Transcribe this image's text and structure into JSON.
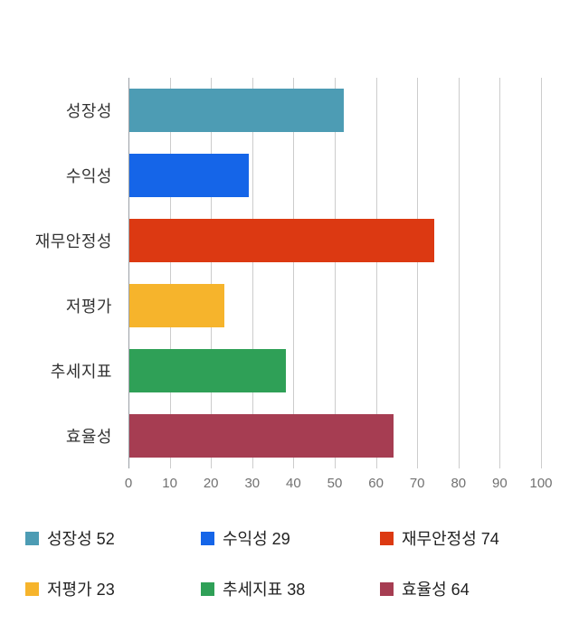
{
  "chart_data": {
    "type": "bar",
    "orientation": "horizontal",
    "title": "",
    "categories": [
      "성장성",
      "수익성",
      "재무안정성",
      "저평가",
      "추세지표",
      "효율성"
    ],
    "values": [
      52,
      29,
      74,
      23,
      38,
      64
    ],
    "colors": [
      "#4d9cb4",
      "#1565e8",
      "#dc3912",
      "#f6b42c",
      "#2fa057",
      "#a63d52"
    ],
    "xlim": [
      0,
      100
    ],
    "x_ticks": [
      0,
      10,
      20,
      30,
      40,
      50,
      60,
      70,
      80,
      90,
      100
    ],
    "grid": true,
    "legend_position": "bottom",
    "legend": [
      {
        "label": "성장성 52",
        "color": "#4d9cb4"
      },
      {
        "label": "수익성 29",
        "color": "#1565e8"
      },
      {
        "label": "재무안정성 74",
        "color": "#dc3912"
      },
      {
        "label": "저평가 23",
        "color": "#f6b42c"
      },
      {
        "label": "추세지표 38",
        "color": "#2fa057"
      },
      {
        "label": "효율성 64",
        "color": "#a63d52"
      }
    ]
  }
}
